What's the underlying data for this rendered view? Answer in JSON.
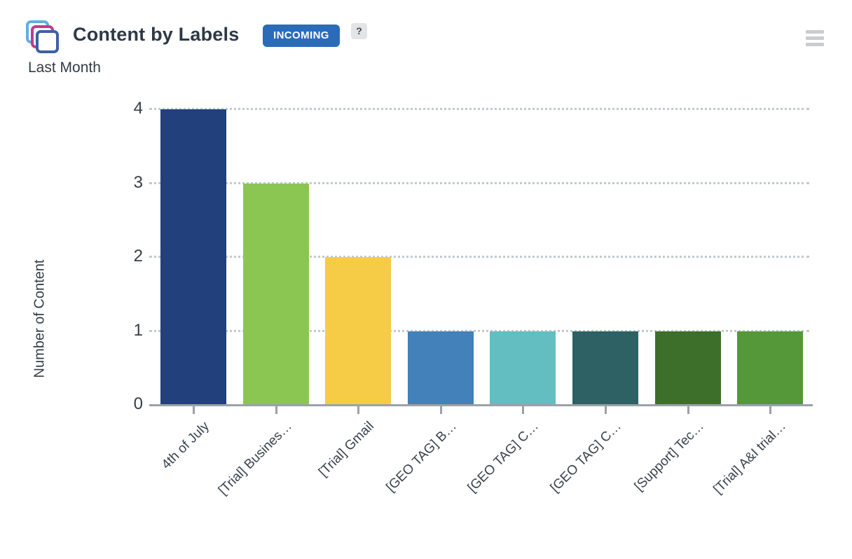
{
  "header": {
    "title": "Content by Labels",
    "badge_label": "INCOMING",
    "help_label": "?",
    "subtitle": "Last Month",
    "logo_icon": "stacked-squares-logo",
    "menu_icon": "hamburger-menu",
    "colors": {
      "badge_bg": "#2a6cb8",
      "badge_text": "#ffffff",
      "logo_back": "#62aee2",
      "logo_mid": "#c23a8c",
      "logo_front": "#3f5fa7",
      "hamburger": "#c9cdd2"
    }
  },
  "chart_data": {
    "type": "bar",
    "title": "Content by Labels",
    "subtitle": "Last Month",
    "xlabel": "",
    "ylabel": "Number of Content",
    "categories": [
      "4th of July",
      "[Trial] Busines…",
      "[Trial] Gmail",
      "[GEO TAG] B…",
      "[GEO TAG] C…",
      "[GEO TAG] C…",
      "[Support] Tec…",
      "[Trial] A&I trial…"
    ],
    "values": [
      4,
      3,
      2,
      1,
      1,
      1,
      1,
      1
    ],
    "bar_colors": [
      "#21407c",
      "#8bc653",
      "#f6cb46",
      "#4281b9",
      "#62bec0",
      "#2e6164",
      "#3d6f2b",
      "#55983a"
    ],
    "yticks": [
      0,
      1,
      2,
      3,
      4
    ],
    "ylim": [
      0,
      4
    ],
    "grid": "horizontal-dotted",
    "gridline_color": "#c2cacd",
    "axis_color": "#9aa1a9",
    "legend": "none",
    "x_label_rotation": -45
  }
}
